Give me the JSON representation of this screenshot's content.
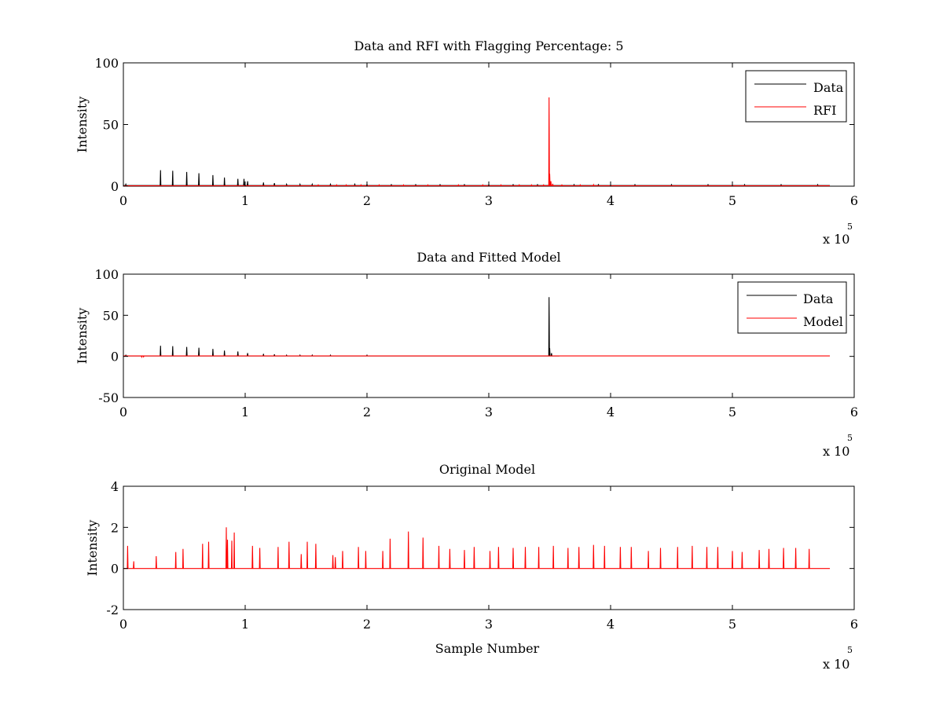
{
  "chart_data": [
    {
      "type": "line",
      "title": "Data and RFI with Flagging Percentage: 5",
      "xlabel": "",
      "ylabel": "Intensity",
      "xlim": [
        0,
        600000
      ],
      "ylim": [
        0,
        100
      ],
      "xticks": [
        0,
        100000,
        200000,
        300000,
        400000,
        500000,
        600000
      ],
      "xtick_labels": [
        "0",
        "1",
        "2",
        "3",
        "4",
        "5",
        "6"
      ],
      "yticks": [
        0,
        50,
        100
      ],
      "ytick_labels": [
        "0",
        "50",
        "100"
      ],
      "x_multiplier": {
        "base": "x 10",
        "exponent": "5"
      },
      "grid": false,
      "legend": {
        "position": "top-right",
        "entries": [
          "Data",
          "RFI"
        ]
      },
      "series": [
        {
          "name": "Data",
          "color": "#000000",
          "baseline": 0.5,
          "x_end": 580000,
          "spikes": [
            [
              2000,
              1.5
            ],
            [
              30500,
              13
            ],
            [
              40500,
              12.5
            ],
            [
              52000,
              11.5
            ],
            [
              62000,
              10.5
            ],
            [
              73500,
              9
            ],
            [
              83000,
              7
            ],
            [
              94000,
              6
            ],
            [
              99000,
              6
            ],
            [
              102000,
              4
            ],
            [
              115000,
              3
            ],
            [
              124000,
              2.5
            ],
            [
              134000,
              1.5
            ],
            [
              145000,
              1.5
            ],
            [
              155000,
              1.5
            ],
            [
              170000,
              1.5
            ],
            [
              190000,
              1.5
            ],
            [
              200000,
              1.5
            ],
            [
              220000,
              1.2
            ],
            [
              240000,
              1.2
            ],
            [
              260000,
              1.2
            ],
            [
              280000,
              1.2
            ],
            [
              300000,
              1.2
            ],
            [
              320000,
              1.2
            ],
            [
              340000,
              1.2
            ],
            [
              370000,
              1.2
            ],
            [
              390000,
              1.2
            ],
            [
              420000,
              1.2
            ],
            [
              450000,
              1.2
            ],
            [
              480000,
              1.2
            ],
            [
              510000,
              1.2
            ],
            [
              540000,
              1.2
            ],
            [
              570000,
              1.2
            ]
          ]
        },
        {
          "name": "RFI",
          "color": "#ff0000",
          "baseline": 0.3,
          "x_end": 580000,
          "spikes": [
            [
              349500,
              72
            ],
            [
              350000,
              10
            ],
            [
              351000,
              4
            ],
            [
              352500,
              2
            ],
            [
              160000,
              1
            ],
            [
              175000,
              1
            ],
            [
              183000,
              1
            ],
            [
              195000,
              1
            ],
            [
              210000,
              1
            ],
            [
              230000,
              1
            ],
            [
              250000,
              1
            ],
            [
              275000,
              1
            ],
            [
              295000,
              1
            ],
            [
              310000,
              1
            ],
            [
              325000,
              1
            ],
            [
              335000,
              1
            ],
            [
              345000,
              1
            ],
            [
              360000,
              1
            ],
            [
              375000,
              1
            ],
            [
              386000,
              1.2
            ]
          ]
        }
      ]
    },
    {
      "type": "line",
      "title": "Data and Fitted Model",
      "xlabel": "",
      "ylabel": "Intensity",
      "xlim": [
        0,
        600000
      ],
      "ylim": [
        -50,
        100
      ],
      "xticks": [
        0,
        100000,
        200000,
        300000,
        400000,
        500000,
        600000
      ],
      "xtick_labels": [
        "0",
        "1",
        "2",
        "3",
        "4",
        "5",
        "6"
      ],
      "yticks": [
        -50,
        0,
        50,
        100
      ],
      "ytick_labels": [
        "-50",
        "0",
        "50",
        "100"
      ],
      "x_multiplier": {
        "base": "x 10",
        "exponent": "5"
      },
      "grid": false,
      "legend": {
        "position": "top-right",
        "entries": [
          "Data",
          "Model"
        ]
      },
      "series": [
        {
          "name": "Data",
          "color": "#000000",
          "baseline": 0.5,
          "x_end": 358000,
          "spikes": [
            [
              2000,
              1.5
            ],
            [
              30500,
              13
            ],
            [
              40500,
              12.5
            ],
            [
              52000,
              11.5
            ],
            [
              62000,
              10.5
            ],
            [
              73500,
              9
            ],
            [
              83000,
              7
            ],
            [
              94000,
              6
            ],
            [
              102000,
              4
            ],
            [
              115000,
              3
            ],
            [
              124000,
              2.5
            ],
            [
              134000,
              1.5
            ],
            [
              145000,
              1.5
            ],
            [
              155000,
              1.5
            ],
            [
              170000,
              1.5
            ],
            [
              200000,
              1.5
            ],
            [
              349500,
              72
            ],
            [
              350000,
              10
            ],
            [
              351500,
              4
            ]
          ]
        },
        {
          "name": "Model",
          "color": "#ff0000",
          "baseline": 0.5,
          "x_end": 580000,
          "spikes": [
            [
              15000,
              -0.8
            ],
            [
              16500,
              -1.2
            ]
          ]
        }
      ]
    },
    {
      "type": "line",
      "title": "Original Model",
      "xlabel": "Sample Number",
      "ylabel": "Intensity",
      "xlim": [
        0,
        600000
      ],
      "ylim": [
        -2,
        4
      ],
      "xticks": [
        0,
        100000,
        200000,
        300000,
        400000,
        500000,
        600000
      ],
      "xtick_labels": [
        "0",
        "1",
        "2",
        "3",
        "4",
        "5",
        "6"
      ],
      "yticks": [
        -2,
        0,
        2,
        4
      ],
      "ytick_labels": [
        "-2",
        "0",
        "2",
        "4"
      ],
      "x_multiplier": {
        "base": "x 10",
        "exponent": "5"
      },
      "grid": false,
      "legend": null,
      "series": [
        {
          "name": "",
          "color": "#ff0000",
          "baseline": 0,
          "x_end": 580000,
          "spikes": [
            [
              3500,
              1.1
            ],
            [
              8500,
              0.35
            ],
            [
              27000,
              0.6
            ],
            [
              43000,
              0.8
            ],
            [
              49000,
              0.95
            ],
            [
              65000,
              1.2
            ],
            [
              70000,
              1.3
            ],
            [
              84500,
              2.0
            ],
            [
              85500,
              1.4
            ],
            [
              89000,
              1.35
            ],
            [
              91000,
              1.75
            ],
            [
              106000,
              1.1
            ],
            [
              112000,
              1.0
            ],
            [
              127000,
              1.05
            ],
            [
              136000,
              1.3
            ],
            [
              146000,
              0.7
            ],
            [
              151000,
              1.3
            ],
            [
              158000,
              1.2
            ],
            [
              172000,
              0.65
            ],
            [
              174000,
              0.55
            ],
            [
              180000,
              0.85
            ],
            [
              193000,
              1.05
            ],
            [
              199000,
              0.85
            ],
            [
              213000,
              0.85
            ],
            [
              219000,
              1.45
            ],
            [
              234000,
              1.8
            ],
            [
              246000,
              1.5
            ],
            [
              259000,
              1.1
            ],
            [
              268000,
              0.95
            ],
            [
              280000,
              0.9
            ],
            [
              288000,
              1.05
            ],
            [
              301000,
              0.85
            ],
            [
              308000,
              1.05
            ],
            [
              320000,
              1.0
            ],
            [
              330000,
              1.05
            ],
            [
              341000,
              1.05
            ],
            [
              353000,
              1.1
            ],
            [
              365000,
              1.0
            ],
            [
              374000,
              1.05
            ],
            [
              386000,
              1.15
            ],
            [
              395000,
              1.1
            ],
            [
              408000,
              1.05
            ],
            [
              417000,
              1.05
            ],
            [
              431000,
              0.85
            ],
            [
              441000,
              1.0
            ],
            [
              455000,
              1.05
            ],
            [
              467000,
              1.1
            ],
            [
              479000,
              1.05
            ],
            [
              488000,
              1.05
            ],
            [
              500000,
              0.85
            ],
            [
              508000,
              0.8
            ],
            [
              522000,
              0.9
            ],
            [
              530000,
              0.95
            ],
            [
              542000,
              1.0
            ],
            [
              552000,
              1.0
            ],
            [
              563000,
              0.95
            ]
          ]
        }
      ]
    }
  ]
}
